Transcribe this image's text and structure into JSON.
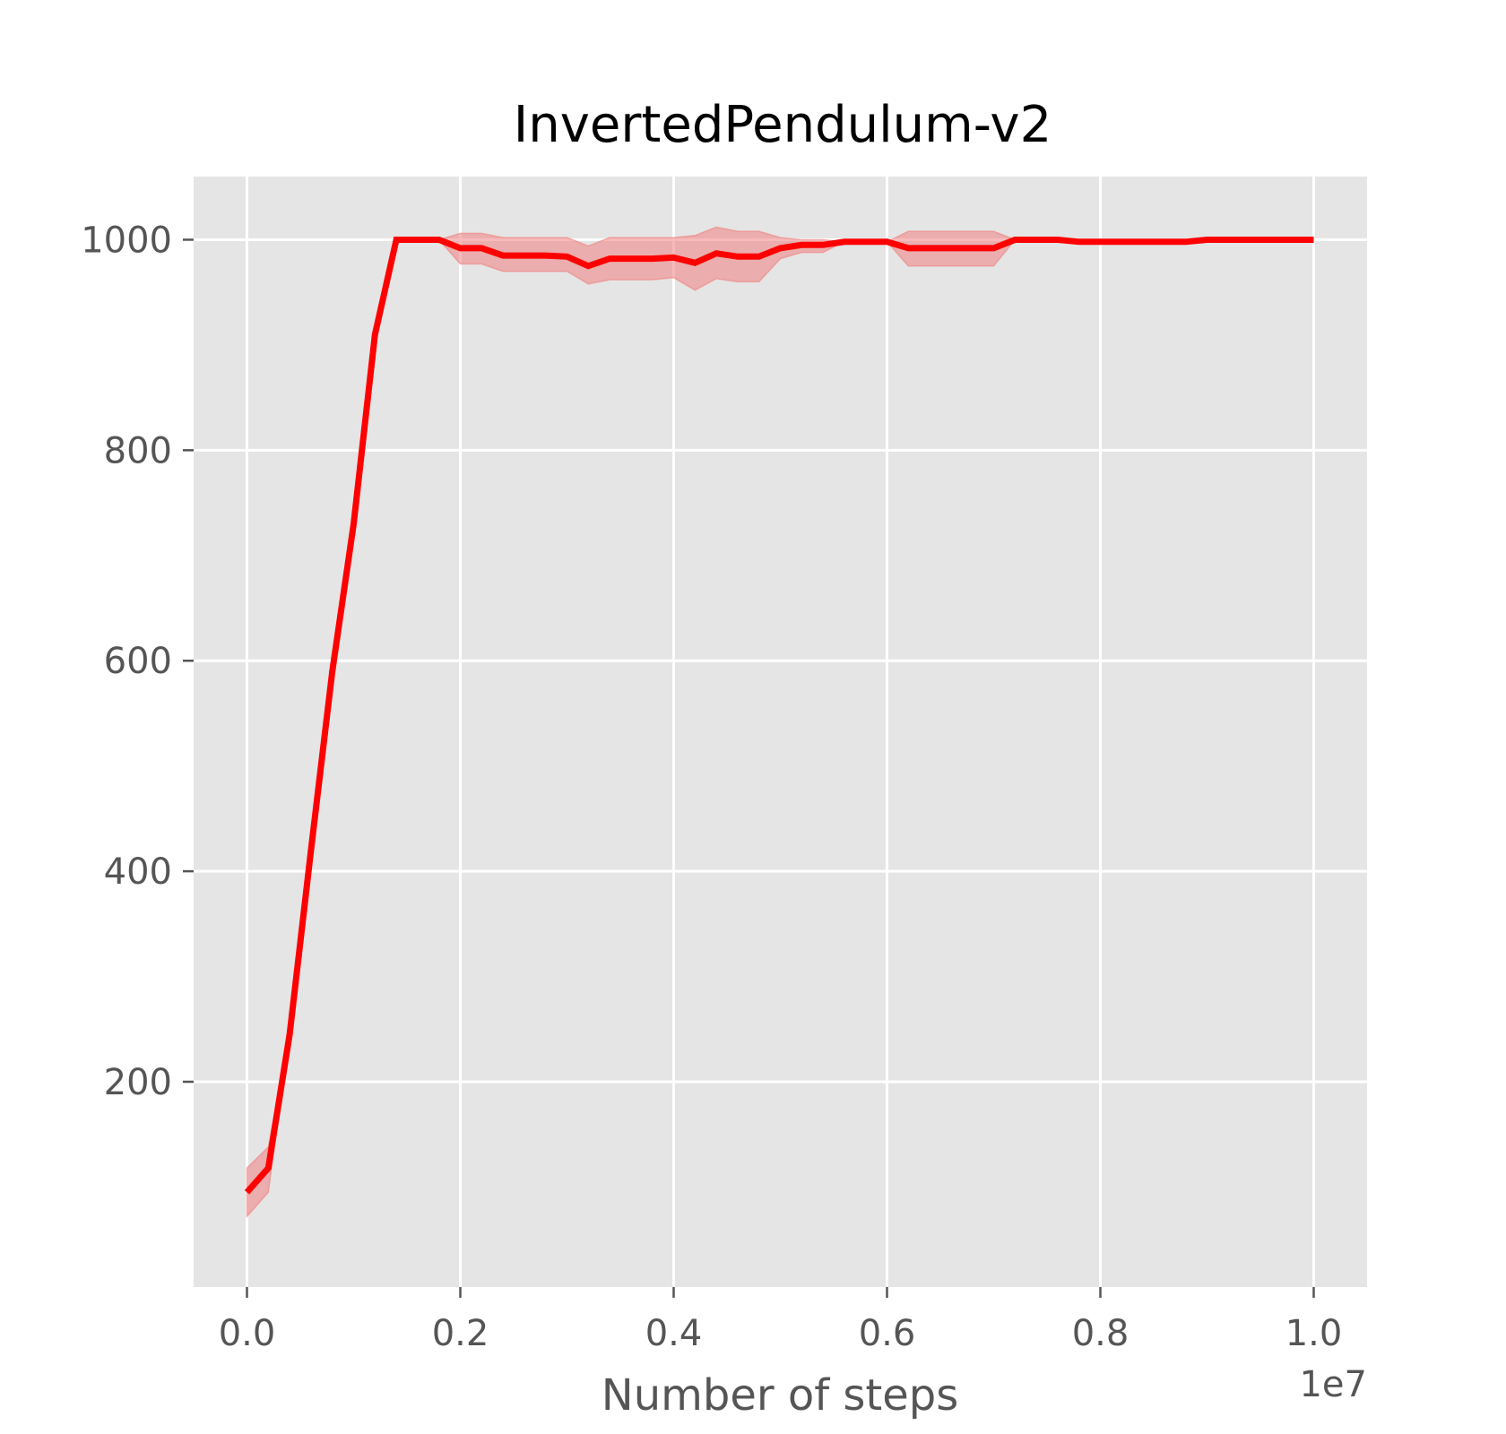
{
  "chart_data": {
    "type": "line",
    "title": "InvertedPendulum-v2",
    "xlabel": "Number of steps",
    "ylabel": "",
    "x_offset_label": "1e7",
    "xlim": [
      -0.05,
      1.05
    ],
    "ylim": [
      5,
      1060
    ],
    "x_ticks": [
      0.0,
      0.2,
      0.4,
      0.6,
      0.8,
      1.0
    ],
    "x_tick_labels": [
      "0.0",
      "0.2",
      "0.4",
      "0.6",
      "0.8",
      "1.0"
    ],
    "y_ticks": [
      200,
      400,
      600,
      800,
      1000
    ],
    "y_tick_labels": [
      "200",
      "400",
      "600",
      "800",
      "1000"
    ],
    "grid": true,
    "colors": {
      "background": "#e5e5e5",
      "grid": "#ffffff",
      "line": "#ff0000",
      "band": "#f08080"
    },
    "series": [
      {
        "x": [
          0.0,
          0.02,
          0.04,
          0.06,
          0.08,
          0.1,
          0.12,
          0.14,
          0.16,
          0.18,
          0.2,
          0.22,
          0.24,
          0.26,
          0.28,
          0.3,
          0.32,
          0.34,
          0.36,
          0.38,
          0.4,
          0.42,
          0.44,
          0.46,
          0.48,
          0.5,
          0.52,
          0.54,
          0.56,
          0.58,
          0.6,
          0.62,
          0.64,
          0.66,
          0.68,
          0.7,
          0.72,
          0.74,
          0.76,
          0.78,
          0.8,
          0.82,
          0.84,
          0.86,
          0.88,
          0.9,
          0.92,
          0.94,
          0.96,
          0.98,
          1.0
        ],
        "y": [
          95,
          118,
          245,
          420,
          590,
          730,
          910,
          1000,
          1000,
          1000,
          992,
          992,
          985,
          985,
          985,
          984,
          975,
          982,
          982,
          982,
          983,
          978,
          987,
          984,
          984,
          992,
          995,
          995,
          998,
          998,
          998,
          992,
          992,
          992,
          992,
          992,
          1000,
          1000,
          1000,
          998,
          998,
          998,
          998,
          998,
          998,
          1000,
          1000,
          1000,
          1000,
          1000,
          1000
        ],
        "y_lower": [
          72,
          95,
          245,
          420,
          590,
          730,
          910,
          1000,
          1000,
          1000,
          977,
          977,
          970,
          970,
          970,
          970,
          958,
          962,
          962,
          962,
          964,
          952,
          963,
          960,
          960,
          982,
          988,
          988,
          998,
          998,
          998,
          975,
          975,
          975,
          975,
          975,
          1000,
          1000,
          1000,
          998,
          998,
          998,
          998,
          998,
          998,
          1000,
          1000,
          1000,
          1000,
          1000,
          1000
        ],
        "y_upper": [
          118,
          138,
          245,
          420,
          590,
          730,
          910,
          1000,
          1000,
          1000,
          1006,
          1006,
          1002,
          1002,
          1002,
          1002,
          994,
          1002,
          1002,
          1002,
          1002,
          1004,
          1012,
          1008,
          1008,
          1002,
          1000,
          1000,
          998,
          998,
          998,
          1008,
          1008,
          1008,
          1008,
          1008,
          1000,
          1000,
          1000,
          998,
          998,
          998,
          998,
          998,
          998,
          1000,
          1000,
          1000,
          1000,
          1000,
          1000
        ]
      }
    ]
  }
}
